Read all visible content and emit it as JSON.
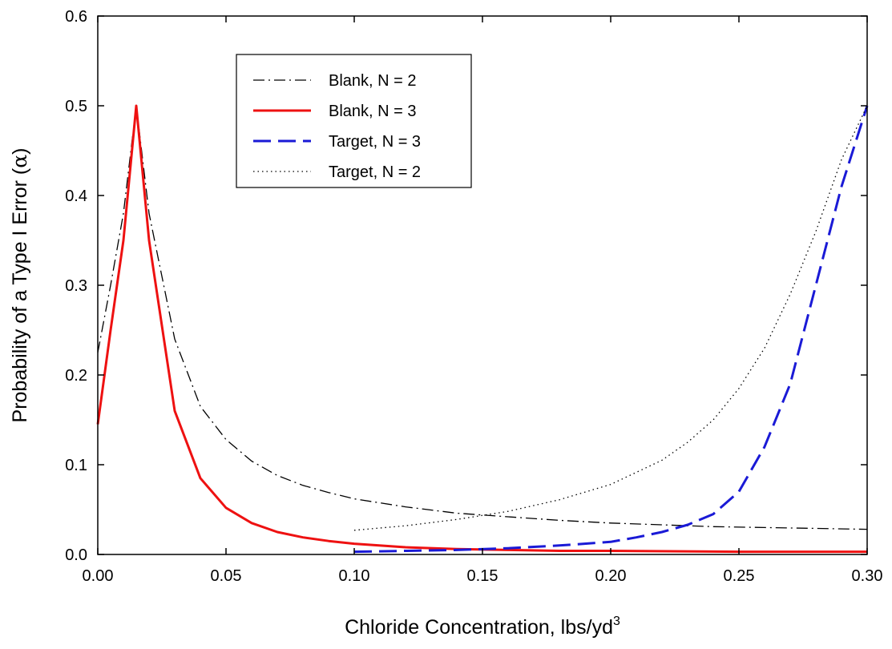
{
  "chart_data": {
    "type": "line",
    "xlabel": "Chloride Concentration, lbs/yd",
    "xlabel_sup": "3",
    "ylabel": "Probability of a Type I Error (",
    "ylabel_symbol": "α",
    "ylabel_end": ")",
    "xlim": [
      0.0,
      0.3
    ],
    "ylim": [
      0.0,
      0.6
    ],
    "xticks": [
      "0.00",
      "0.05",
      "0.10",
      "0.15",
      "0.20",
      "0.25",
      "0.30"
    ],
    "yticks": [
      "0.0",
      "0.1",
      "0.2",
      "0.3",
      "0.4",
      "0.5",
      "0.6"
    ],
    "grid": false,
    "legend_position": "upper-left-inside",
    "series": [
      {
        "name": "Blank, N = 2",
        "color": "#000000",
        "style": "dashdot",
        "x": [
          0.0,
          0.005,
          0.01,
          0.015,
          0.02,
          0.03,
          0.04,
          0.05,
          0.06,
          0.07,
          0.08,
          0.09,
          0.1,
          0.12,
          0.14,
          0.16,
          0.18,
          0.2,
          0.22,
          0.24,
          0.26,
          0.28,
          0.3
        ],
        "y": [
          0.225,
          0.3,
          0.38,
          0.5,
          0.38,
          0.24,
          0.165,
          0.128,
          0.104,
          0.088,
          0.077,
          0.069,
          0.062,
          0.053,
          0.046,
          0.042,
          0.038,
          0.035,
          0.033,
          0.031,
          0.03,
          0.029,
          0.028
        ]
      },
      {
        "name": "Blank, N = 3",
        "color": "#ee1111",
        "style": "solid",
        "x": [
          0.0,
          0.005,
          0.01,
          0.015,
          0.02,
          0.03,
          0.04,
          0.05,
          0.06,
          0.07,
          0.08,
          0.09,
          0.1,
          0.12,
          0.14,
          0.16,
          0.18,
          0.2,
          0.25,
          0.3
        ],
        "y": [
          0.145,
          0.25,
          0.35,
          0.5,
          0.35,
          0.16,
          0.085,
          0.052,
          0.035,
          0.025,
          0.019,
          0.015,
          0.012,
          0.008,
          0.006,
          0.005,
          0.004,
          0.004,
          0.003,
          0.003
        ]
      },
      {
        "name": "Target, N = 3",
        "color": "#1a1ad6",
        "style": "dashed",
        "x": [
          0.1,
          0.12,
          0.14,
          0.16,
          0.18,
          0.2,
          0.21,
          0.22,
          0.23,
          0.24,
          0.25,
          0.26,
          0.27,
          0.28,
          0.29,
          0.3
        ],
        "y": [
          0.003,
          0.004,
          0.005,
          0.007,
          0.01,
          0.014,
          0.019,
          0.025,
          0.033,
          0.045,
          0.07,
          0.12,
          0.19,
          0.3,
          0.41,
          0.5
        ]
      },
      {
        "name": "Target, N = 2",
        "color": "#000000",
        "style": "dotted",
        "x": [
          0.1,
          0.12,
          0.14,
          0.16,
          0.18,
          0.2,
          0.22,
          0.23,
          0.24,
          0.25,
          0.26,
          0.27,
          0.28,
          0.29,
          0.3
        ],
        "y": [
          0.027,
          0.032,
          0.039,
          0.048,
          0.061,
          0.078,
          0.105,
          0.125,
          0.15,
          0.185,
          0.23,
          0.29,
          0.36,
          0.44,
          0.5
        ]
      }
    ]
  }
}
